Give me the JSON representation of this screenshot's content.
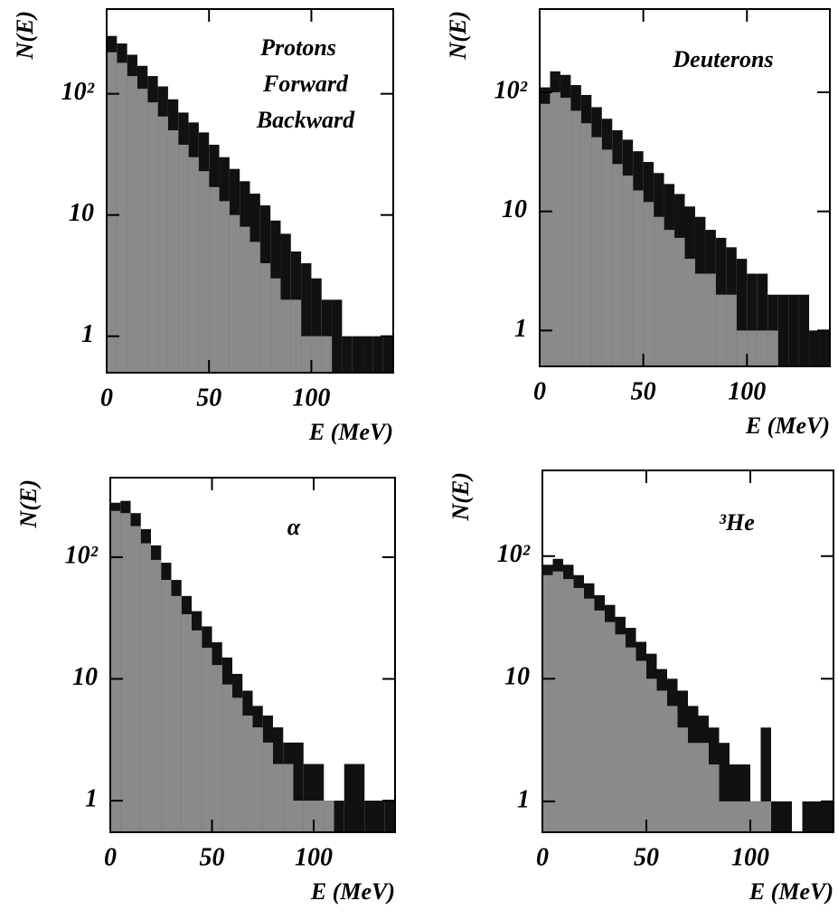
{
  "chart_data": [
    {
      "type": "histogram",
      "label": "Protons",
      "ylabel": "N(E)",
      "xlabel": "E (MeV)",
      "log_y": true,
      "bins": [
        0,
        5,
        10,
        15,
        20,
        25,
        30,
        35,
        40,
        45,
        50,
        55,
        60,
        65,
        70,
        75,
        80,
        85,
        90,
        95,
        100,
        105,
        110,
        115,
        120,
        125,
        130,
        135,
        140
      ],
      "xlim": [
        0,
        140
      ],
      "xticks": [
        0,
        50,
        100
      ],
      "ylim": [
        0.5,
        500
      ],
      "yticks": [
        1,
        10,
        {
          "value": 100,
          "label": "10²"
        }
      ],
      "series": [
        {
          "name": "Forward",
          "color": "#111111",
          "values": [
            300,
            260,
            210,
            170,
            140,
            115,
            90,
            70,
            58,
            48,
            38,
            30,
            24,
            19,
            15,
            12,
            9,
            7,
            5,
            4,
            3,
            2,
            2,
            1,
            1,
            1,
            1,
            1
          ]
        },
        {
          "name": "Backward",
          "color": "#8a8a8a",
          "values": [
            220,
            180,
            140,
            110,
            85,
            65,
            50,
            38,
            30,
            23,
            17,
            13,
            10,
            8,
            6,
            4,
            3,
            2,
            2,
            1,
            1,
            1,
            0,
            0,
            0,
            0,
            0,
            0
          ]
        }
      ]
    },
    {
      "type": "histogram",
      "label": "Deuterons",
      "ylabel": "N(E)",
      "xlabel": "E (MeV)",
      "log_y": true,
      "bins": [
        0,
        5,
        10,
        15,
        20,
        25,
        30,
        35,
        40,
        45,
        50,
        55,
        60,
        65,
        70,
        75,
        80,
        85,
        90,
        95,
        100,
        105,
        110,
        115,
        120,
        125,
        130,
        135,
        140
      ],
      "xlim": [
        0,
        140
      ],
      "xticks": [
        0,
        50,
        100
      ],
      "ylim": [
        0.5,
        500
      ],
      "yticks": [
        1,
        10,
        {
          "value": 100,
          "label": "10²"
        }
      ],
      "series": [
        {
          "color": "#111111",
          "values": [
            110,
            150,
            140,
            115,
            95,
            75,
            60,
            48,
            40,
            32,
            26,
            21,
            17,
            14,
            11,
            9,
            7,
            6,
            5,
            4,
            3,
            3,
            2,
            2,
            2,
            2,
            1,
            1
          ]
        },
        {
          "color": "#8a8a8a",
          "values": [
            80,
            100,
            90,
            70,
            55,
            42,
            33,
            25,
            20,
            15,
            12,
            9,
            7,
            6,
            4,
            3,
            3,
            2,
            2,
            1,
            1,
            1,
            1,
            0,
            0,
            0,
            0,
            0
          ]
        }
      ]
    },
    {
      "type": "histogram",
      "label": "α",
      "ylabel": "N(E)",
      "xlabel": "E (MeV)",
      "log_y": true,
      "bins": [
        0,
        5,
        10,
        15,
        20,
        25,
        30,
        35,
        40,
        45,
        50,
        55,
        60,
        65,
        70,
        75,
        80,
        85,
        90,
        95,
        100,
        105,
        110,
        115,
        120,
        125,
        130,
        135,
        140
      ],
      "xlim": [
        0,
        140
      ],
      "xticks": [
        0,
        50,
        100
      ],
      "ylim": [
        0.55,
        450
      ],
      "yticks": [
        1,
        10,
        {
          "value": 100,
          "label": "10²"
        }
      ],
      "series": [
        {
          "color": "#111111",
          "values": [
            280,
            290,
            230,
            170,
            125,
            90,
            65,
            48,
            36,
            27,
            20,
            15,
            11,
            8,
            6,
            5,
            4,
            3,
            3,
            2,
            2,
            1,
            1,
            2,
            2,
            1,
            1,
            1
          ]
        },
        {
          "color": "#8a8a8a",
          "values": [
            240,
            230,
            180,
            130,
            95,
            65,
            48,
            34,
            25,
            18,
            13,
            9,
            7,
            5,
            4,
            3,
            2,
            2,
            1,
            1,
            1,
            1,
            0,
            0,
            0,
            0,
            0,
            0
          ]
        }
      ]
    },
    {
      "type": "histogram",
      "label": "³He",
      "ylabel": "N(E)",
      "xlabel": "E (MeV)",
      "log_y": true,
      "bins": [
        0,
        5,
        10,
        15,
        20,
        25,
        30,
        35,
        40,
        45,
        50,
        55,
        60,
        65,
        70,
        75,
        80,
        85,
        90,
        95,
        100,
        105,
        110,
        115,
        120,
        125,
        130,
        135,
        140
      ],
      "xlim": [
        0,
        140
      ],
      "xticks": [
        0,
        50,
        100
      ],
      "ylim": [
        0.56,
        500
      ],
      "yticks": [
        1,
        10,
        {
          "value": 100,
          "label": "10²"
        }
      ],
      "series": [
        {
          "color": "#111111",
          "values": [
            85,
            95,
            85,
            70,
            60,
            48,
            40,
            32,
            26,
            20,
            16,
            12,
            10,
            8,
            6,
            5,
            4,
            3,
            2,
            2,
            1,
            4,
            1,
            1,
            0,
            1,
            1,
            1
          ]
        },
        {
          "color": "#8a8a8a",
          "values": [
            70,
            75,
            65,
            55,
            45,
            36,
            29,
            23,
            18,
            14,
            10,
            8,
            6,
            4,
            3,
            3,
            2,
            1,
            1,
            1,
            1,
            1,
            0,
            0,
            0,
            0,
            0,
            0
          ]
        }
      ]
    }
  ]
}
